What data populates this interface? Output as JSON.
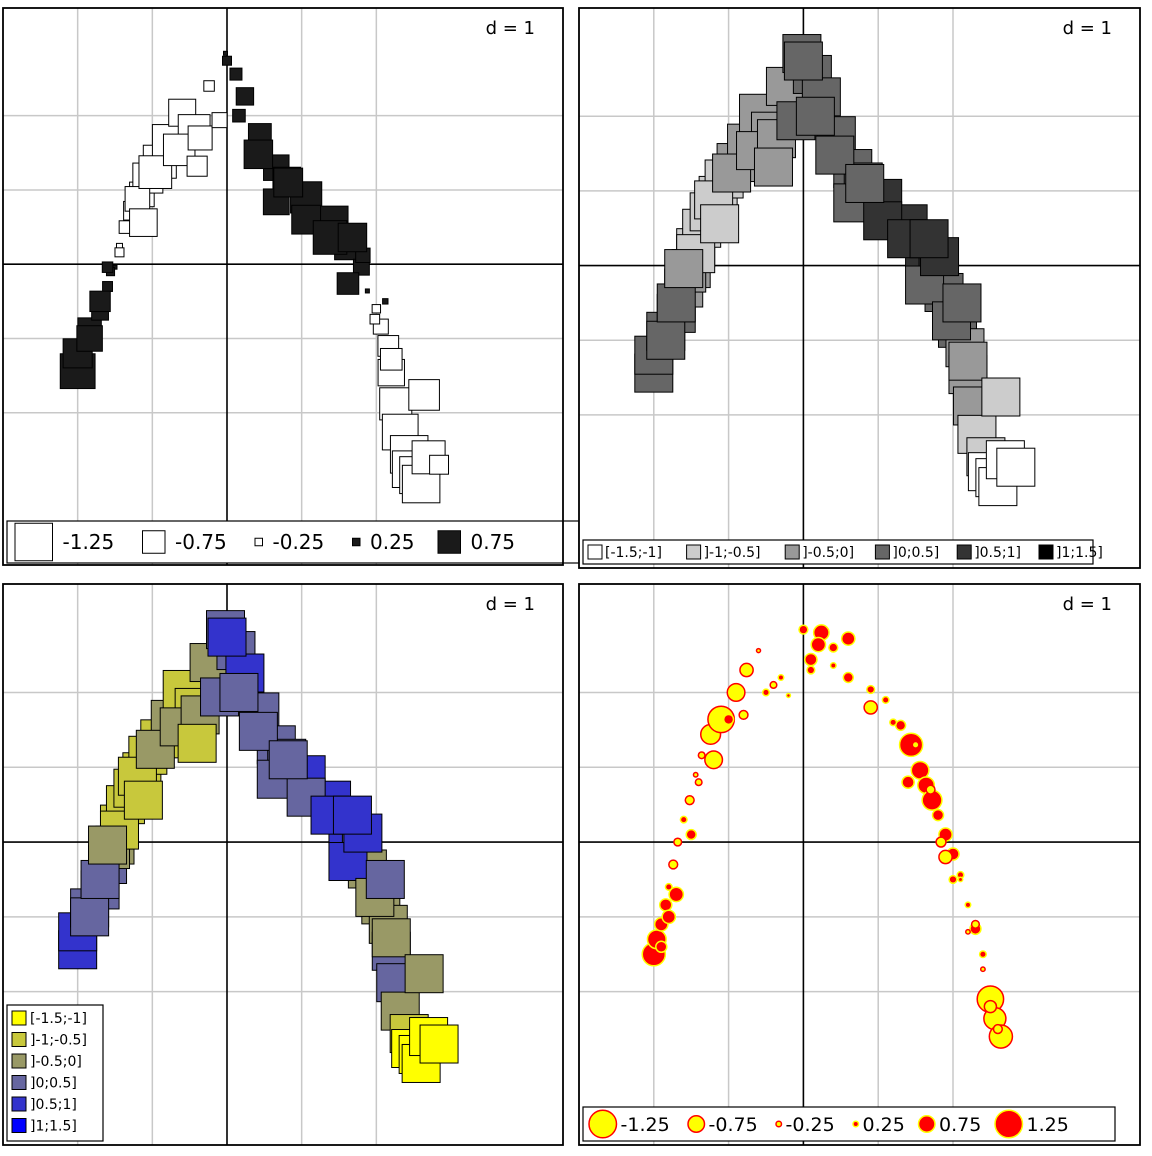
{
  "chart_data": [
    {
      "type": "scatter",
      "subtype": "bubble-squares-by-sign",
      "dscale": "d = 1",
      "xlim": [
        -1.5,
        1.5
      ],
      "ylim": [
        -1.5,
        1.5
      ],
      "grid": true,
      "legend_position": "bottom-left",
      "legend": [
        {
          "label": "-1.25",
          "value": -1.25
        },
        {
          "label": "-0.75",
          "value": -0.75
        },
        {
          "label": "-0.25",
          "value": -0.25
        },
        {
          "label": "0.25",
          "value": 0.25
        },
        {
          "label": "0.75",
          "value": 0.75
        }
      ],
      "colors": {
        "negative": "#ffffff",
        "positive": "#1a1a1a"
      },
      "x": [
        -1.0,
        -1.0,
        -0.92,
        -0.85,
        -0.8,
        -0.75,
        -0.72,
        -0.68,
        -0.63,
        -0.57,
        -0.53,
        -0.45,
        -0.38,
        -0.3,
        -0.22,
        -0.12,
        -0.01,
        0.06,
        0.12,
        0.22,
        0.33,
        0.4,
        0.53,
        0.7,
        0.81,
        0.9,
        0.94,
        1.0,
        1.03,
        1.08,
        1.1,
        1.13,
        1.16,
        1.22,
        1.23,
        1.28,
        1.3,
        1.35,
        1.42,
        -0.92,
        -0.78,
        -0.6,
        -0.48,
        -0.32,
        -0.18,
        -0.05,
        0.0,
        0.21,
        0.33,
        0.53,
        0.69,
        0.81,
        0.99,
        1.1,
        1.32,
        -0.85,
        -0.72,
        -0.2,
        0.08,
        0.91,
        1.06,
        -0.8,
        -0.56,
        0.41,
        0.84
      ],
      "y": [
        -0.72,
        -0.6,
        -0.44,
        -0.32,
        -0.15,
        -0.02,
        0.12,
        0.25,
        0.36,
        0.47,
        0.58,
        0.69,
        0.82,
        1.02,
        0.9,
        1.2,
        1.42,
        1.28,
        1.13,
        0.87,
        0.65,
        0.56,
        0.45,
        0.28,
        0.12,
        -0.02,
        -0.18,
        -0.3,
        -0.42,
        -0.55,
        -0.73,
        -0.94,
        -1.13,
        -1.28,
        -1.38,
        -1.42,
        -1.48,
        -1.3,
        -1.35,
        -0.5,
        -0.05,
        0.44,
        0.62,
        0.77,
        0.85,
        0.97,
        1.37,
        0.74,
        0.42,
        0.3,
        0.18,
        -0.13,
        -0.37,
        -0.64,
        -0.88,
        -0.25,
        0.08,
        0.66,
        1.0,
        0.06,
        -0.25,
        -0.02,
        0.28,
        0.55,
        0.18
      ],
      "z": [
        1.16,
        0.97,
        0.78,
        0.56,
        0.33,
        0.05,
        -0.2,
        -0.42,
        -0.62,
        -0.82,
        -1.0,
        -1.1,
        -1.19,
        -0.9,
        -1.06,
        -0.35,
        0.12,
        0.4,
        0.58,
        0.76,
        0.85,
        0.92,
        1.04,
        1.1,
        0.89,
        0.53,
        0.12,
        -0.28,
        -0.5,
        -0.69,
        -0.88,
        -1.07,
        -1.19,
        -1.25,
        -1.22,
        -1.23,
        -1.25,
        -1.1,
        -0.63,
        0.85,
        0.27,
        -0.82,
        -1.09,
        -1.05,
        -0.8,
        -0.5,
        0.3,
        0.95,
        0.86,
        0.96,
        1.12,
        0.72,
        -0.32,
        -0.72,
        -1.02,
        0.68,
        -0.3,
        -0.67,
        0.42,
        0.48,
        0.18,
        0.35,
        -0.92,
        0.96,
        0.95
      ]
    },
    {
      "type": "scatter",
      "subtype": "bubble-squares-grey-classes",
      "dscale": "d = 1",
      "xlim": [
        -1.5,
        1.5
      ],
      "ylim": [
        -1.5,
        1.5
      ],
      "grid": true,
      "legend_position": "bottom-left",
      "legend": [
        {
          "label": "[-1.5;-1]",
          "color": "#ffffff"
        },
        {
          "label": "]-1;-0.5]",
          "color": "#cccccc"
        },
        {
          "label": "]-0.5;0]",
          "color": "#999999"
        },
        {
          "label": "]0;0.5]",
          "color": "#666666"
        },
        {
          "label": "]0.5;1]",
          "color": "#333333"
        },
        {
          "label": "]1;1.5]",
          "color": "#000000"
        }
      ],
      "x": [
        -1.0,
        -1.0,
        -0.92,
        -0.85,
        -0.8,
        -0.75,
        -0.72,
        -0.68,
        -0.63,
        -0.57,
        -0.53,
        -0.45,
        -0.38,
        -0.3,
        -0.22,
        -0.12,
        -0.01,
        0.06,
        0.12,
        0.22,
        0.33,
        0.4,
        0.53,
        0.7,
        0.81,
        0.9,
        0.94,
        1.0,
        1.03,
        1.08,
        1.1,
        1.13,
        1.16,
        1.22,
        1.23,
        1.28,
        1.3,
        1.35,
        1.42,
        -0.92,
        -0.78,
        -0.6,
        -0.48,
        -0.32,
        -0.18,
        -0.05,
        0.0,
        0.21,
        0.33,
        0.53,
        0.69,
        0.81,
        0.99,
        1.1,
        1.32,
        -0.85,
        -0.72,
        -0.2,
        0.08,
        0.91,
        1.06,
        -0.8,
        -0.56,
        0.41,
        0.84
      ],
      "y": [
        -0.72,
        -0.6,
        -0.44,
        -0.32,
        -0.15,
        -0.02,
        0.12,
        0.25,
        0.36,
        0.47,
        0.58,
        0.69,
        0.82,
        1.02,
        0.9,
        1.2,
        1.42,
        1.28,
        1.13,
        0.87,
        0.65,
        0.56,
        0.45,
        0.28,
        0.12,
        -0.02,
        -0.18,
        -0.3,
        -0.42,
        -0.55,
        -0.73,
        -0.94,
        -1.13,
        -1.28,
        -1.38,
        -1.42,
        -1.48,
        -1.3,
        -1.35,
        -0.5,
        -0.05,
        0.44,
        0.62,
        0.77,
        0.85,
        0.97,
        1.37,
        0.74,
        0.42,
        0.3,
        0.18,
        -0.13,
        -0.37,
        -0.64,
        -0.88,
        -0.25,
        0.08,
        0.66,
        1.0,
        0.06,
        -0.25,
        -0.02,
        0.28,
        0.55,
        0.18
      ],
      "z": [
        0.45,
        0.3,
        0.2,
        0.1,
        -0.2,
        -0.45,
        -0.6,
        -0.75,
        -0.8,
        -0.7,
        -0.55,
        -0.45,
        -0.35,
        -0.3,
        -0.4,
        -0.25,
        0.2,
        0.3,
        0.25,
        0.2,
        0.35,
        0.45,
        0.6,
        0.65,
        0.7,
        0.6,
        0.5,
        0.3,
        0.1,
        -0.05,
        -0.2,
        -0.35,
        -0.55,
        -0.8,
        -1.05,
        -1.15,
        -1.2,
        -1.1,
        -1.0,
        0.3,
        -0.3,
        -0.6,
        -0.4,
        -0.3,
        -0.2,
        0.1,
        0.25,
        0.35,
        0.45,
        0.55,
        0.6,
        0.45,
        0.15,
        -0.3,
        -0.8,
        0.1,
        -0.55,
        -0.3,
        0.3,
        0.55,
        0.2,
        -0.1,
        -0.6,
        0.4,
        0.6
      ]
    },
    {
      "type": "scatter",
      "subtype": "bubble-squares-color-classes",
      "dscale": "d = 1",
      "xlim": [
        -1.5,
        1.5
      ],
      "ylim": [
        -1.5,
        1.5
      ],
      "grid": true,
      "legend_position": "bottom-left",
      "legend": [
        {
          "label": "[-1.5;-1]",
          "color": "#ffff00"
        },
        {
          "label": "]-1;-0.5]",
          "color": "#c8c83c"
        },
        {
          "label": "]-0.5;0]",
          "color": "#999966"
        },
        {
          "label": "]0;0.5]",
          "color": "#6666a0"
        },
        {
          "label": "]0.5;1]",
          "color": "#3333cc"
        },
        {
          "label": "]1;1.5]",
          "color": "#0000ff"
        }
      ],
      "x": [
        -1.0,
        -1.0,
        -0.92,
        -0.85,
        -0.8,
        -0.75,
        -0.72,
        -0.68,
        -0.63,
        -0.57,
        -0.53,
        -0.45,
        -0.38,
        -0.3,
        -0.22,
        -0.12,
        -0.01,
        0.06,
        0.12,
        0.22,
        0.33,
        0.4,
        0.53,
        0.7,
        0.81,
        0.9,
        0.94,
        1.0,
        1.03,
        1.08,
        1.1,
        1.13,
        1.16,
        1.22,
        1.23,
        1.28,
        1.3,
        1.35,
        1.42,
        -0.92,
        -0.78,
        -0.6,
        -0.48,
        -0.32,
        -0.18,
        -0.05,
        0.0,
        0.21,
        0.33,
        0.53,
        0.69,
        0.81,
        0.99,
        1.1,
        1.32,
        -0.85,
        -0.72,
        -0.2,
        0.08,
        0.91,
        1.06,
        -0.8,
        -0.56,
        0.41,
        0.84
      ],
      "y": [
        -0.72,
        -0.6,
        -0.44,
        -0.32,
        -0.15,
        -0.02,
        0.12,
        0.25,
        0.36,
        0.47,
        0.58,
        0.69,
        0.82,
        1.02,
        0.9,
        1.2,
        1.42,
        1.28,
        1.13,
        0.87,
        0.65,
        0.56,
        0.45,
        0.28,
        0.12,
        -0.02,
        -0.18,
        -0.3,
        -0.42,
        -0.55,
        -0.73,
        -0.94,
        -1.13,
        -1.28,
        -1.38,
        -1.42,
        -1.48,
        -1.3,
        -1.35,
        -0.5,
        -0.05,
        0.44,
        0.62,
        0.77,
        0.85,
        0.97,
        1.37,
        0.74,
        0.42,
        0.3,
        0.18,
        -0.13,
        -0.37,
        -0.64,
        -0.88,
        -0.25,
        0.08,
        0.66,
        1.0,
        0.06,
        -0.25,
        -0.02,
        0.28,
        0.55,
        0.18
      ],
      "z": [
        0.75,
        0.6,
        0.4,
        0.2,
        0.1,
        -0.3,
        -0.6,
        -0.8,
        -0.9,
        -0.7,
        -0.6,
        -0.55,
        -0.45,
        -0.5,
        -0.6,
        -0.4,
        0.2,
        0.4,
        0.6,
        0.3,
        0.2,
        0.4,
        0.6,
        0.75,
        0.6,
        0.2,
        -0.1,
        -0.3,
        -0.4,
        -0.3,
        0.2,
        0.25,
        -0.3,
        -0.6,
        -1.1,
        -1.2,
        -1.3,
        -1.1,
        -1.05,
        0.3,
        -0.4,
        -0.8,
        -0.4,
        -0.3,
        -0.2,
        0.15,
        0.7,
        0.3,
        0.2,
        0.5,
        0.7,
        0.6,
        -0.2,
        -0.3,
        -0.4,
        0.3,
        -0.6,
        -0.5,
        0.4,
        0.65,
        0.3,
        -0.2,
        -0.8,
        0.3,
        0.7
      ]
    },
    {
      "type": "scatter",
      "subtype": "bubble-circles-size",
      "dscale": "d = 1",
      "xlim": [
        -1.5,
        1.5
      ],
      "ylim": [
        -1.5,
        1.5
      ],
      "grid": true,
      "legend_position": "bottom-left",
      "legend": [
        {
          "label": "-1.25",
          "value": -1.25
        },
        {
          "label": "-0.75",
          "value": -0.75
        },
        {
          "label": "-0.25",
          "value": -0.25
        },
        {
          "label": "0.25",
          "value": 0.25
        },
        {
          "label": "0.75",
          "value": 0.75
        },
        {
          "label": "1.25",
          "value": 1.25
        }
      ],
      "colors": {
        "negative": "#ffff00",
        "positive": "#ff0000",
        "stroke_negative": "#ff0000",
        "stroke_positive": "#ffff00"
      },
      "x": [
        -1.0,
        -0.98,
        -0.95,
        -0.92,
        -0.9,
        -0.87,
        -0.84,
        -0.8,
        -0.76,
        -0.72,
        -0.68,
        -0.62,
        -0.55,
        -0.45,
        -0.38,
        -0.3,
        -0.2,
        -0.1,
        0.0,
        0.05,
        0.12,
        0.2,
        0.3,
        0.45,
        0.55,
        0.65,
        0.72,
        0.78,
        0.82,
        0.86,
        0.9,
        0.95,
        1.0,
        1.05,
        1.1,
        1.15,
        1.2,
        1.25,
        1.28,
        1.32,
        -0.95,
        -0.85,
        -0.75,
        -0.6,
        -0.4,
        -0.25,
        -0.15,
        0.05,
        0.2,
        0.3,
        0.45,
        0.6,
        0.75,
        0.85,
        0.95,
        1.05,
        1.15,
        1.2,
        1.3,
        -0.9,
        -0.7,
        -0.5,
        0.1,
        0.7,
        0.92,
        1.1,
        1.25,
        1.0
      ],
      "y": [
        -0.75,
        -0.65,
        -0.55,
        -0.42,
        -0.3,
        -0.15,
        0.0,
        0.15,
        0.28,
        0.45,
        0.58,
        0.72,
        0.82,
        1.0,
        1.15,
        1.28,
        1.05,
        0.98,
        1.42,
        1.22,
        1.4,
        1.18,
        1.36,
        1.02,
        0.95,
        0.78,
        0.65,
        0.48,
        0.38,
        0.28,
        0.18,
        0.05,
        -0.08,
        -0.22,
        -0.42,
        -0.58,
        -0.75,
        -1.05,
        -1.18,
        -1.3,
        -0.7,
        -0.35,
        0.05,
        0.55,
        0.85,
        1.0,
        1.1,
        1.15,
        1.3,
        1.1,
        0.9,
        0.8,
        0.65,
        0.35,
        -0.1,
        -0.25,
        -0.55,
        -0.85,
        -1.25,
        -0.5,
        0.4,
        0.82,
        1.32,
        0.4,
        0.0,
        -0.6,
        -1.1,
        -0.25
      ],
      "z": [
        1.05,
        0.85,
        0.6,
        0.55,
        0.3,
        -0.4,
        -0.35,
        0.3,
        -0.4,
        -0.2,
        -0.3,
        -0.9,
        -1.2,
        -0.8,
        -0.6,
        -0.15,
        -0.3,
        0.15,
        0.4,
        0.55,
        0.7,
        0.25,
        0.6,
        0.35,
        0.3,
        0.45,
        1.05,
        0.8,
        0.75,
        0.9,
        0.5,
        0.6,
        0.55,
        0.3,
        0.25,
        0.5,
        0.3,
        -1.2,
        -1.0,
        -1.05,
        0.5,
        0.65,
        0.45,
        -0.8,
        -0.4,
        0.3,
        0.25,
        0.35,
        0.4,
        0.45,
        -0.6,
        0.3,
        -0.3,
        -0.4,
        -0.6,
        0.2,
        -0.35,
        -0.2,
        -0.4,
        0.6,
        -0.3,
        0.45,
        0.65,
        0.55,
        -0.45,
        -0.2,
        -0.55,
        0.35
      ]
    }
  ]
}
